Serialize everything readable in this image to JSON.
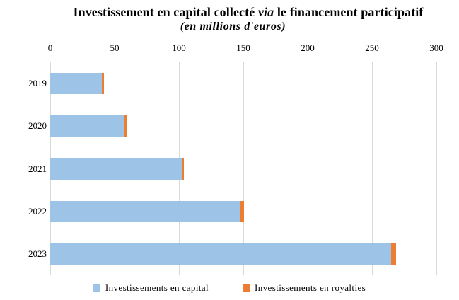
{
  "header": {
    "title_prefix": "Investissement en capital collecté ",
    "title_italic": "via",
    "title_suffix": " le financement participatif",
    "subtitle": "(en millions d'euros)"
  },
  "legend": {
    "items": [
      {
        "label": "Investissements en capital",
        "color": "#9DC3E6"
      },
      {
        "label": "Investissements en royalties",
        "color": "#ED7D31"
      }
    ]
  },
  "colors": {
    "capital_blue": "#9DC3E6",
    "royalties_orange": "#ED7D31",
    "gridline": "#D9D9D9",
    "text": "#000000",
    "background": "#FFFFFF"
  },
  "chart_data": {
    "type": "bar",
    "orientation": "horizontal",
    "stacked": true,
    "title": "Investissement en capital collecté via le financement participatif",
    "subtitle": "(en millions d'euros)",
    "categories": [
      "2019",
      "2020",
      "2021",
      "2022",
      "2023"
    ],
    "series": [
      {
        "name": "Investissements en capital",
        "color": "#9DC3E6",
        "values": [
          40,
          57,
          102,
          147,
          265
        ]
      },
      {
        "name": "Investissements en royalties",
        "color": "#ED7D31",
        "values": [
          2,
          2.5,
          2,
          3.7,
          3.5
        ]
      }
    ],
    "x_ticks": [
      0,
      50,
      100,
      150,
      200,
      250,
      300
    ],
    "xlim": [
      0,
      300
    ],
    "x_axis_position": "top",
    "grid": true,
    "legend_position": "bottom"
  }
}
